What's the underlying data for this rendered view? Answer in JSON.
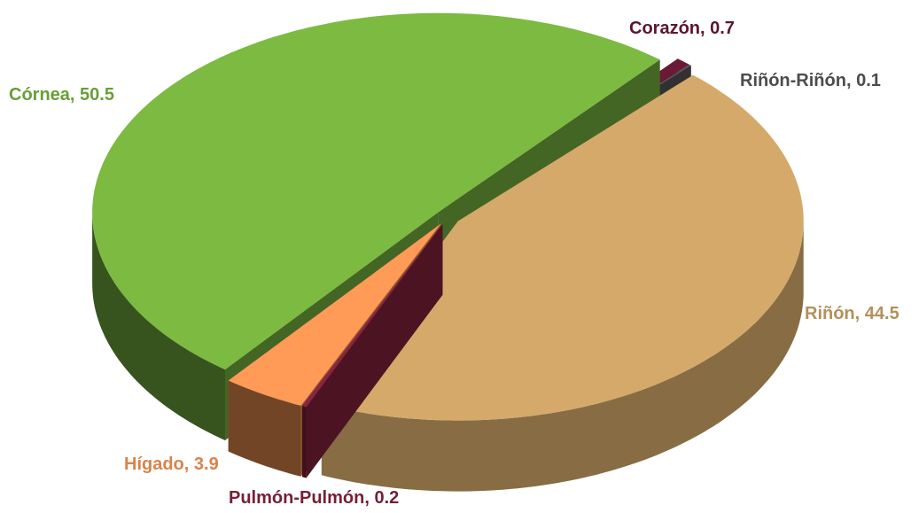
{
  "chart_data": {
    "type": "pie3d",
    "categories": [
      "Córnea",
      "Corazón",
      "Riñón-Riñón",
      "Riñón",
      "Pulmón-Pulmón",
      "Hígado"
    ],
    "values": [
      50.5,
      0.7,
      0.1,
      44.5,
      0.2,
      3.9
    ],
    "colors": [
      "#7cba42",
      "#6b1a35",
      "#595959",
      "#d4a96a",
      "#8b2440",
      "#ff9a57"
    ]
  }
}
